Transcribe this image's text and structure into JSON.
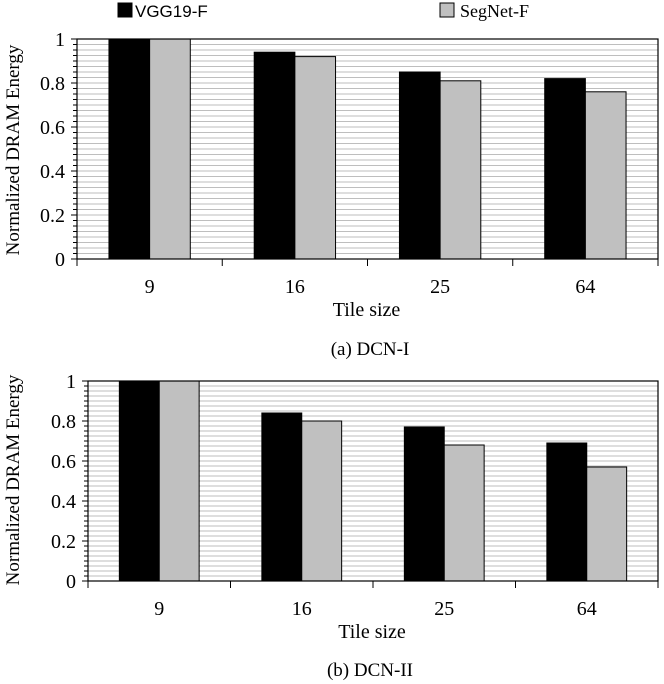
{
  "legend": {
    "vgg": "VGG19-F",
    "segnet": "SegNet-F"
  },
  "colors": {
    "vgg": "#000000",
    "segnet": "#c0c0c0",
    "grid": "#a8a8a8",
    "frame": "#000000"
  },
  "chart_data": [
    {
      "type": "bar",
      "caption": "(a)  DCN-I",
      "categories": [
        "9",
        "16",
        "25",
        "64"
      ],
      "series": [
        {
          "name": "VGG19-F",
          "values": [
            1.0,
            0.94,
            0.85,
            0.82
          ]
        },
        {
          "name": "SegNet-F",
          "values": [
            1.0,
            0.92,
            0.81,
            0.76
          ]
        }
      ],
      "xlabel": "Tile size",
      "ylabel": "Normalized DRAM Energy",
      "ylim": [
        0,
        1
      ],
      "yticks": [
        "0",
        "0.2",
        "0.4",
        "0.6",
        "0.8",
        "1"
      ],
      "ytick_values": [
        0,
        0.2,
        0.4,
        0.6,
        0.8,
        1
      ],
      "grid": true
    },
    {
      "type": "bar",
      "caption": "(b)  DCN-II",
      "categories": [
        "9",
        "16",
        "25",
        "64"
      ],
      "series": [
        {
          "name": "VGG19-F",
          "values": [
            1.0,
            0.84,
            0.77,
            0.69
          ]
        },
        {
          "name": "SegNet-F",
          "values": [
            1.0,
            0.8,
            0.68,
            0.57
          ]
        }
      ],
      "xlabel": "Tile size",
      "ylabel": "Normalized DRAM Energy",
      "ylim": [
        0,
        1
      ],
      "yticks": [
        "0",
        "0.2",
        "0.4",
        "0.6",
        "0.8",
        "1"
      ],
      "ytick_values": [
        0,
        0.2,
        0.4,
        0.6,
        0.8,
        1
      ],
      "grid": true
    }
  ]
}
